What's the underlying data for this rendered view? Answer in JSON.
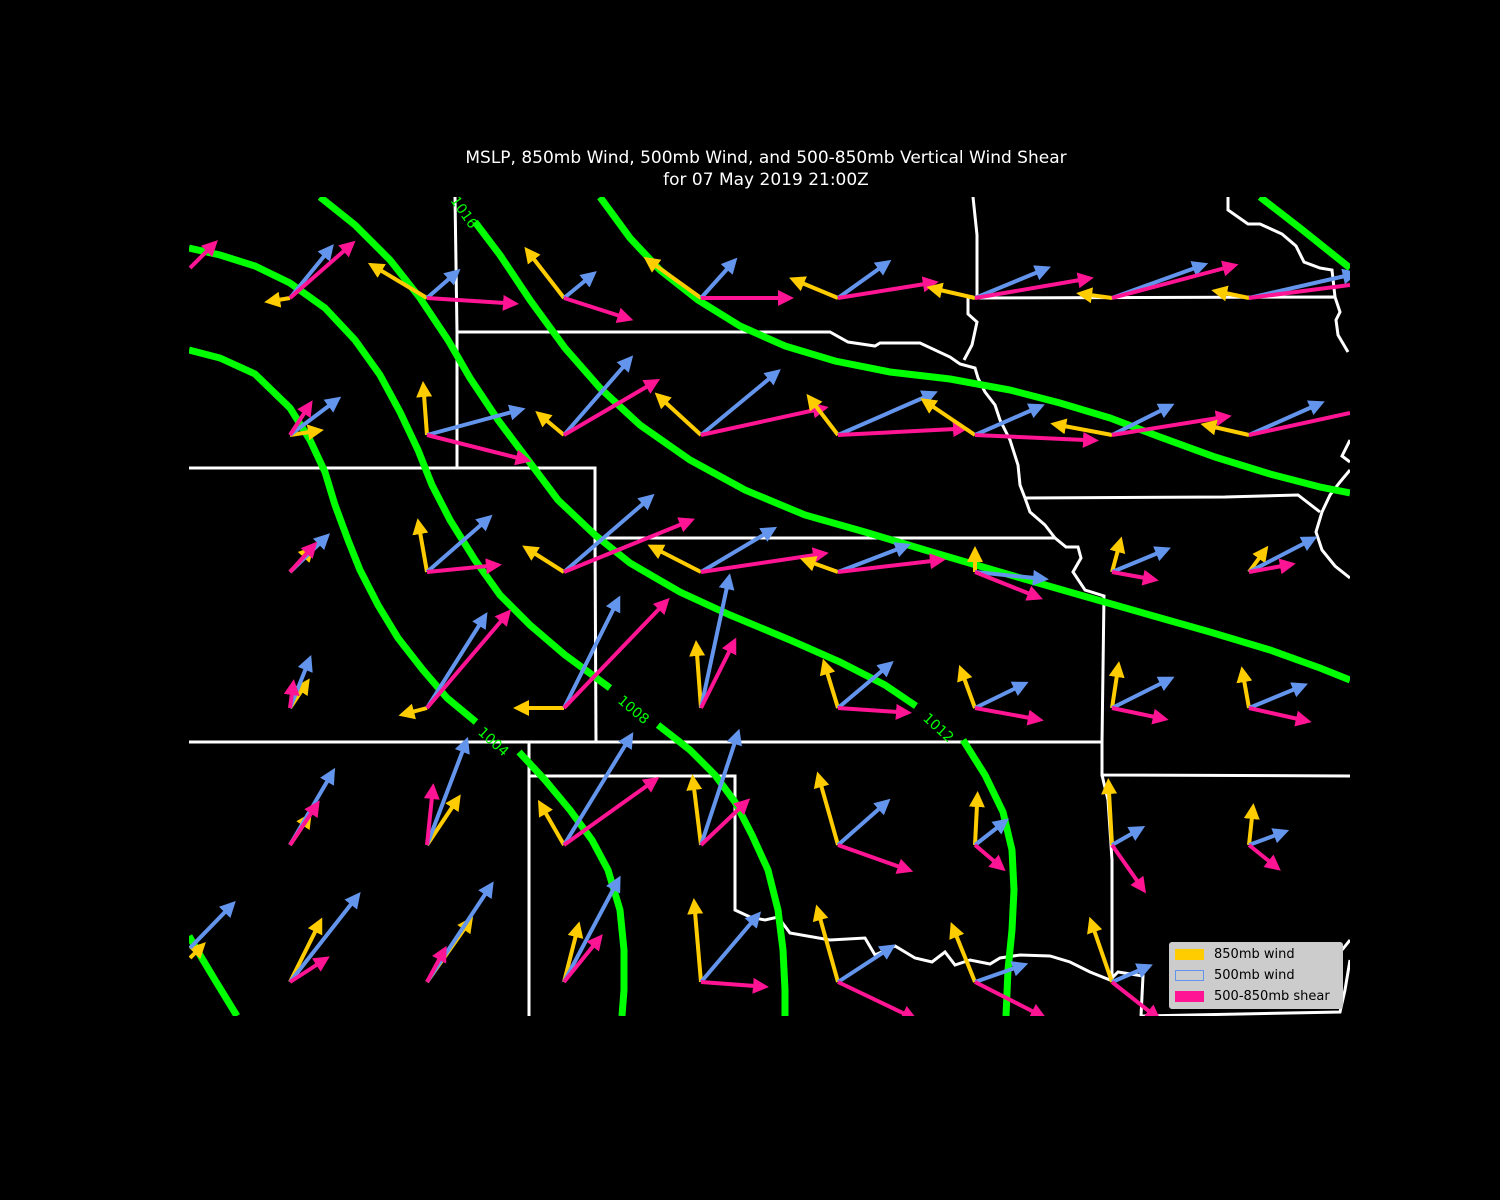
{
  "title": {
    "line1": "MSLP, 850mb Wind, 500mb Wind, and 500-850mb Vertical Wind Shear",
    "line2": "for 07 May 2019 21:00Z"
  },
  "colors": {
    "background": "#000000",
    "isobar": "#00ff00",
    "state_border": "#ffffff",
    "wind_850": "#ffcc00",
    "wind_500": "#6495ed",
    "shear": "#ff1493"
  },
  "isobars": {
    "levels": [
      "1004",
      "1008",
      "1012",
      "1016"
    ]
  },
  "legend": {
    "items": [
      {
        "label": "850mb wind",
        "color": "#ffcc00"
      },
      {
        "label": "500mb wind",
        "color": "#6495ed"
      },
      {
        "label": "500-850mb shear",
        "color": "#ff1493"
      }
    ]
  }
}
